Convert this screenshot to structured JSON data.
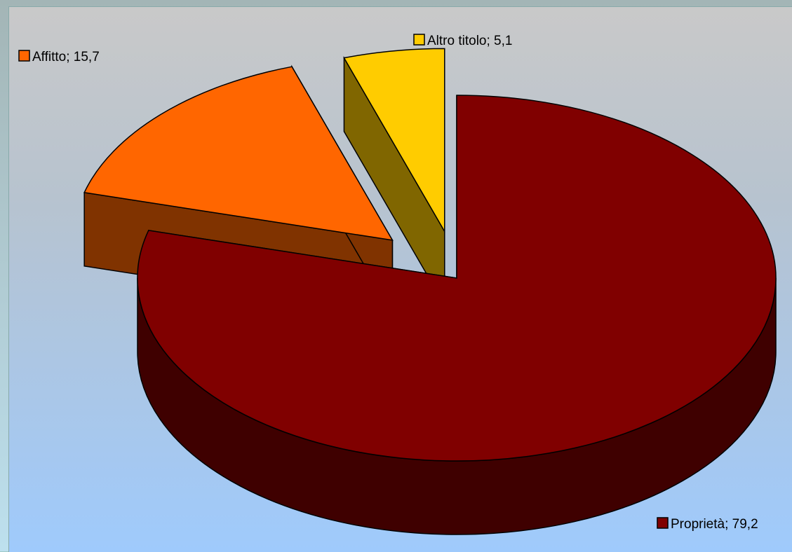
{
  "chart_data": {
    "type": "pie",
    "title": "",
    "slices": [
      {
        "label": "Proprietà",
        "value": 79.2,
        "display": "Proprietà; 79,2",
        "color": "#800000",
        "side_color": "#3f0000"
      },
      {
        "label": "Affitto",
        "value": 15.7,
        "display": "Affitto; 15,7",
        "color": "#ff6600",
        "side_color": "#803300"
      },
      {
        "label": "Altro titolo",
        "value": 5.1,
        "display": "Altro titolo; 5,1",
        "color": "#ffcc00",
        "side_color": "#806600"
      }
    ],
    "style": "3d-exploded",
    "legend": "none"
  }
}
